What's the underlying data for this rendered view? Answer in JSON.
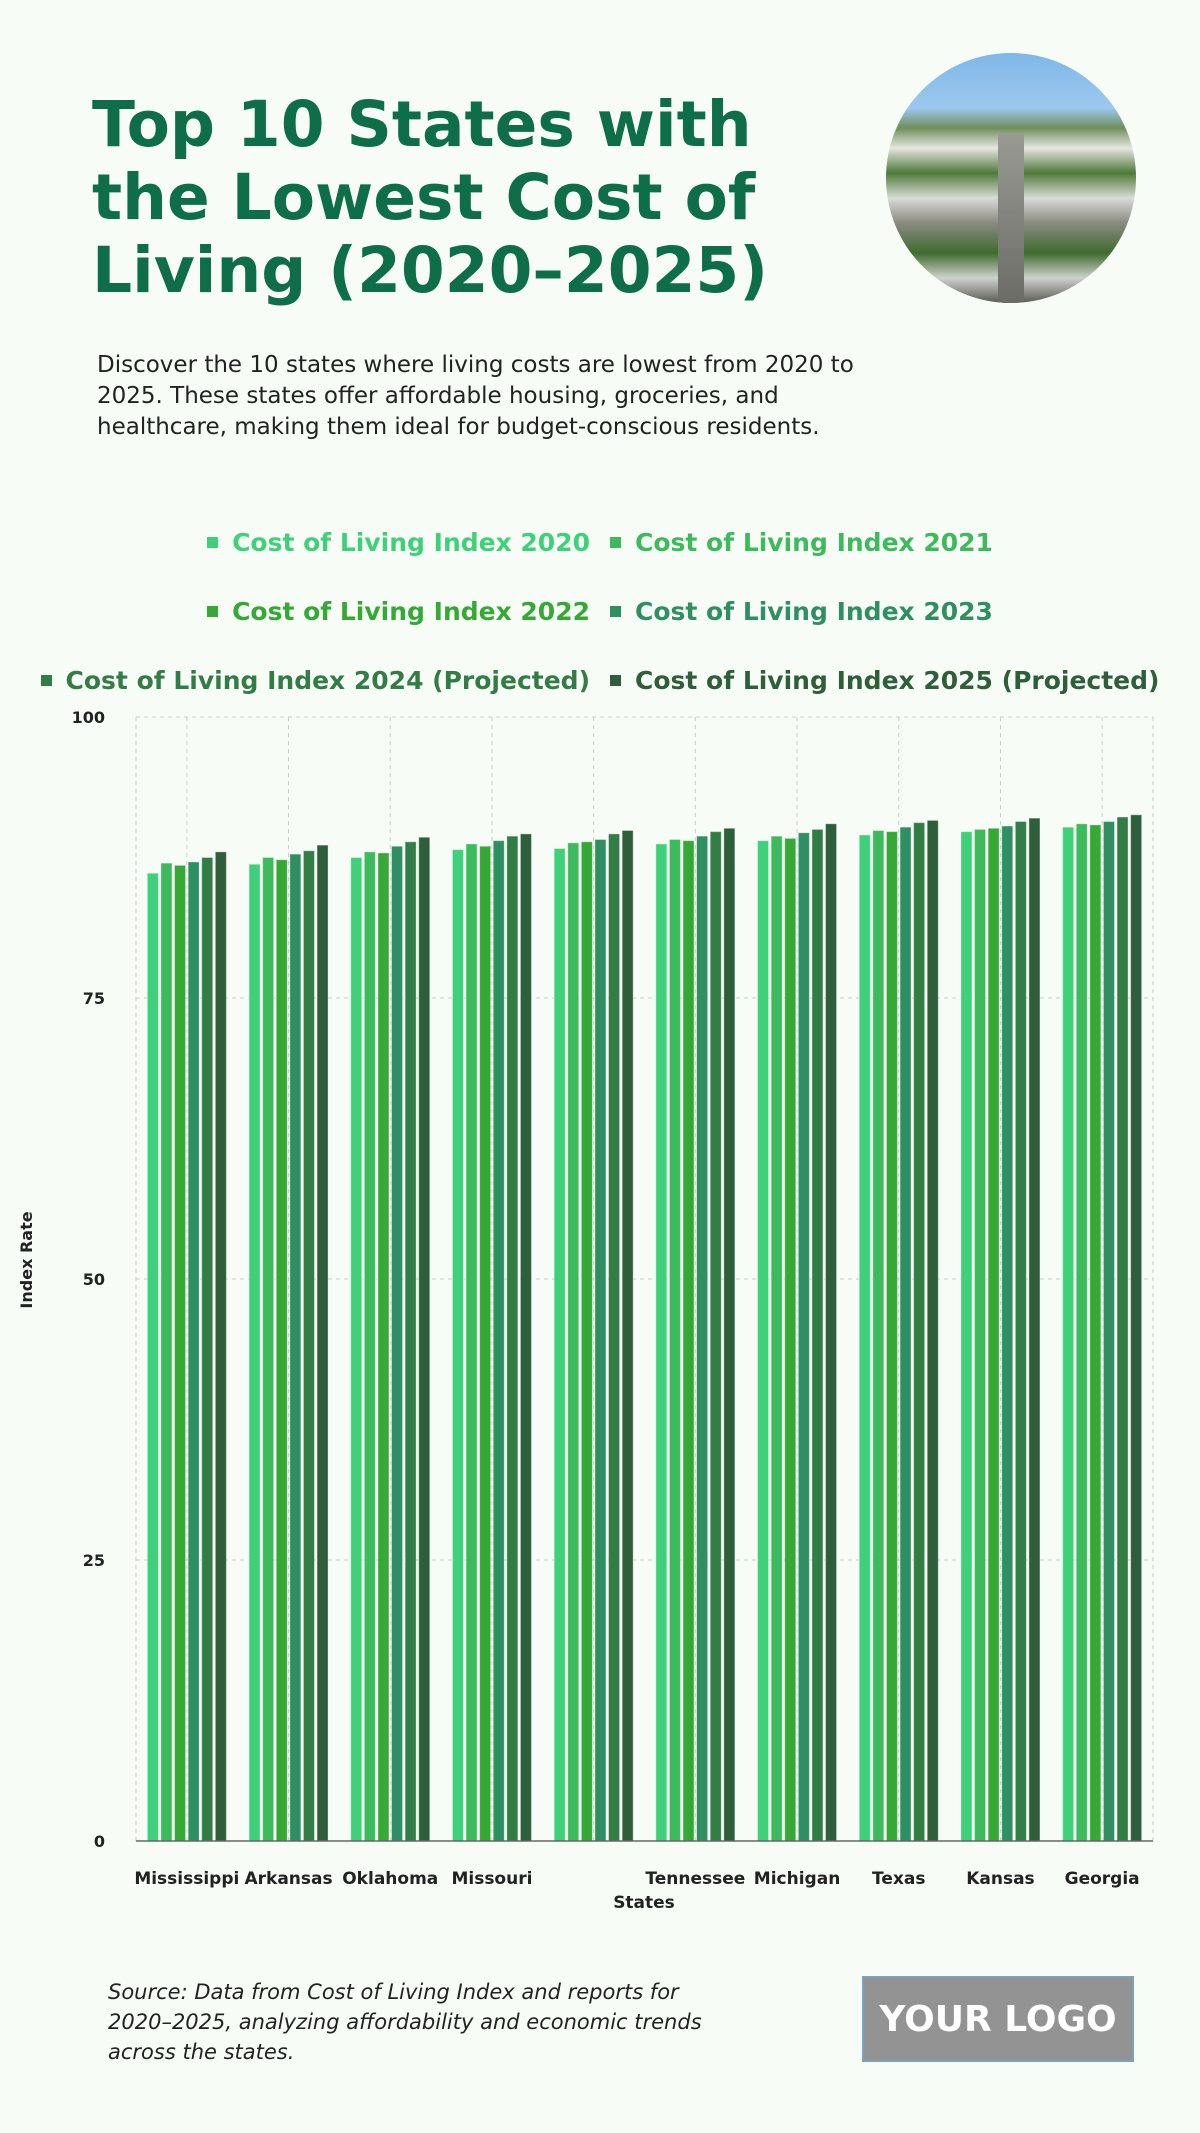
{
  "header": {
    "title": "Top 10 States with the Lowest Cost of Living (2020–2025)",
    "description": "Discover the 10 states where living costs are lowest from 2020 to 2025. These states offer affordable housing, groceries, and healthcare, making them ideal for budget-conscious residents."
  },
  "footer": {
    "source": "Source: Data from Cost of Living Index and reports for 2020–2025, analyzing affordability and economic trends across the states.",
    "logo": "YOUR LOGO"
  },
  "chart_data": {
    "type": "bar",
    "xlabel": "States",
    "ylabel": "Index Rate",
    "ylim": [
      0,
      100
    ],
    "yticks": [
      "0",
      "25",
      "50",
      "75",
      "100"
    ],
    "grid": true,
    "legend_position": "top",
    "categories": [
      "Mississippi",
      "Arkansas",
      "Oklahoma",
      "Missouri",
      "",
      "Tennessee",
      "Michigan",
      "Texas",
      "Kansas",
      "Georgia"
    ],
    "series": [
      {
        "name": "Cost of Living Index 2020",
        "color": "#3fd17a",
        "values": [
          86.1,
          86.9,
          87.5,
          88.2,
          88.3,
          88.7,
          89.0,
          89.5,
          89.8,
          90.2
        ]
      },
      {
        "name": "Cost of Living Index 2021",
        "color": "#3dba5c",
        "values": [
          87.0,
          87.5,
          88.0,
          88.7,
          88.8,
          89.1,
          89.4,
          89.9,
          90.0,
          90.5
        ]
      },
      {
        "name": "Cost of Living Index 2022",
        "color": "#35a836",
        "values": [
          86.8,
          87.3,
          87.9,
          88.5,
          88.9,
          89.0,
          89.2,
          89.8,
          90.1,
          90.4
        ]
      },
      {
        "name": "Cost of Living Index 2023",
        "color": "#2f8f62",
        "values": [
          87.1,
          87.8,
          88.5,
          89.0,
          89.1,
          89.4,
          89.7,
          90.2,
          90.3,
          90.7
        ]
      },
      {
        "name": "Cost of Living Index 2024 (Projected)",
        "color": "#327d45",
        "values": [
          87.5,
          88.1,
          88.9,
          89.4,
          89.6,
          89.8,
          90.0,
          90.6,
          90.7,
          91.1
        ]
      },
      {
        "name": "Cost of Living Index 2025 (Projected)",
        "color": "#2f5e3a",
        "values": [
          88.0,
          88.6,
          89.3,
          89.6,
          89.9,
          90.1,
          90.5,
          90.8,
          91.0,
          91.3
        ]
      }
    ]
  }
}
